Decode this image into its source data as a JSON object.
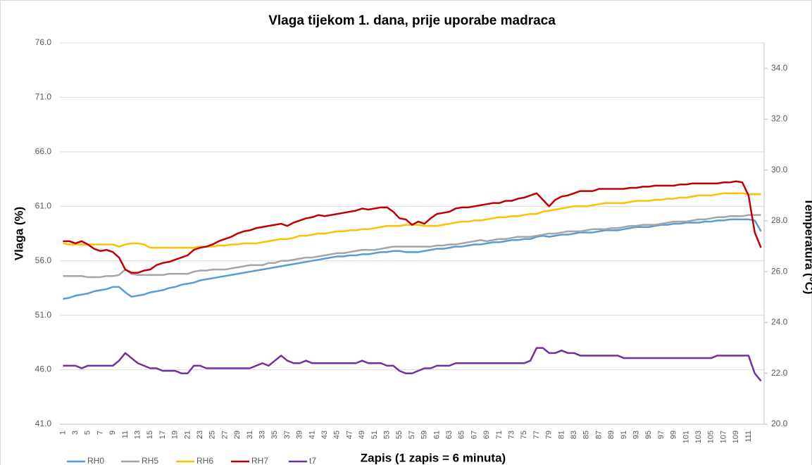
{
  "chart_data": {
    "type": "line",
    "title": "Vlaga tijekom 1. dana, prije uporabe madraca",
    "xlabel": "Zapis (1 zapis = 6 minuta)",
    "ylabel": "Vlaga (%)",
    "y2label": "Temperatura (°C)",
    "categories": [
      1,
      null,
      3,
      null,
      5,
      null,
      7,
      null,
      9,
      null,
      11,
      null,
      13,
      null,
      15,
      null,
      17,
      null,
      19,
      null,
      21,
      null,
      23,
      null,
      25,
      null,
      27,
      null,
      29,
      null,
      31,
      null,
      33,
      null,
      35,
      null,
      37,
      null,
      39,
      null,
      41,
      null,
      43,
      null,
      45,
      null,
      47,
      null,
      49,
      null,
      51,
      null,
      53,
      null,
      55,
      null,
      57,
      null,
      59,
      null,
      61,
      null,
      63,
      null,
      65,
      null,
      67,
      null,
      69,
      null,
      71,
      null,
      73,
      null,
      75,
      null,
      77,
      null,
      79,
      null,
      81,
      null,
      83,
      null,
      85,
      null,
      87,
      null,
      89,
      null,
      91,
      null,
      93,
      null,
      95,
      null,
      97,
      null,
      99,
      null,
      101,
      null,
      103,
      null,
      105,
      null,
      107,
      null,
      109,
      null,
      111,
      null,
      null
    ],
    "series": [
      {
        "name": "RH0",
        "color": "#5b9bd5",
        "values": [
          52.5,
          52.6,
          52.8,
          52.9,
          53.0,
          53.2,
          53.3,
          53.4,
          53.6,
          53.6,
          53.1,
          52.7,
          52.8,
          52.9,
          53.1,
          53.2,
          53.3,
          53.5,
          53.6,
          53.8,
          53.9,
          54.0,
          54.2,
          54.3,
          54.4,
          54.5,
          54.6,
          54.7,
          54.8,
          54.9,
          55.0,
          55.1,
          55.2,
          55.3,
          55.4,
          55.5,
          55.6,
          55.7,
          55.8,
          55.9,
          56.0,
          56.1,
          56.2,
          56.3,
          56.4,
          56.4,
          56.5,
          56.5,
          56.6,
          56.6,
          56.7,
          56.8,
          56.8,
          56.9,
          56.9,
          56.8,
          56.8,
          56.8,
          56.9,
          57.0,
          57.1,
          57.1,
          57.2,
          57.3,
          57.3,
          57.4,
          57.5,
          57.5,
          57.6,
          57.7,
          57.7,
          57.8,
          57.9,
          57.9,
          58.0,
          58.0,
          58.2,
          58.3,
          58.2,
          58.3,
          58.4,
          58.4,
          58.5,
          58.6,
          58.6,
          58.6,
          58.7,
          58.8,
          58.8,
          58.8,
          58.9,
          59.0,
          59.1,
          59.1,
          59.1,
          59.2,
          59.3,
          59.3,
          59.4,
          59.4,
          59.5,
          59.5,
          59.5,
          59.6,
          59.6,
          59.7,
          59.7,
          59.8,
          59.8,
          59.8,
          59.8,
          59.7,
          58.7
        ]
      },
      {
        "name": "RH5",
        "color": "#a5a5a5",
        "values": [
          54.6,
          54.6,
          54.6,
          54.6,
          54.5,
          54.5,
          54.5,
          54.6,
          54.6,
          54.7,
          55.2,
          54.8,
          54.7,
          54.7,
          54.7,
          54.7,
          54.7,
          54.8,
          54.8,
          54.8,
          54.8,
          55.0,
          55.1,
          55.1,
          55.2,
          55.2,
          55.2,
          55.3,
          55.4,
          55.5,
          55.6,
          55.6,
          55.6,
          55.8,
          55.8,
          56.0,
          56.0,
          56.1,
          56.2,
          56.3,
          56.3,
          56.4,
          56.5,
          56.6,
          56.7,
          56.7,
          56.8,
          56.9,
          57.0,
          57.0,
          57.0,
          57.1,
          57.2,
          57.3,
          57.3,
          57.3,
          57.3,
          57.3,
          57.3,
          57.3,
          57.4,
          57.4,
          57.5,
          57.5,
          57.6,
          57.7,
          57.8,
          57.9,
          57.8,
          57.9,
          58.0,
          58.0,
          58.1,
          58.2,
          58.2,
          58.2,
          58.3,
          58.4,
          58.5,
          58.5,
          58.6,
          58.7,
          58.7,
          58.7,
          58.8,
          58.9,
          58.9,
          58.9,
          59.0,
          59.0,
          59.1,
          59.2,
          59.2,
          59.3,
          59.3,
          59.3,
          59.4,
          59.5,
          59.6,
          59.6,
          59.6,
          59.7,
          59.8,
          59.8,
          59.9,
          60.0,
          60.0,
          60.1,
          60.1,
          60.1,
          60.2,
          60.2,
          60.2
        ]
      },
      {
        "name": "RH6",
        "color": "#ffc000",
        "values": [
          57.6,
          57.5,
          57.5,
          57.5,
          57.5,
          57.5,
          57.5,
          57.5,
          57.5,
          57.3,
          57.5,
          57.6,
          57.6,
          57.5,
          57.2,
          57.2,
          57.2,
          57.2,
          57.2,
          57.2,
          57.2,
          57.2,
          57.3,
          57.3,
          57.3,
          57.4,
          57.4,
          57.5,
          57.5,
          57.6,
          57.6,
          57.6,
          57.7,
          57.8,
          57.9,
          58.0,
          58.0,
          58.1,
          58.3,
          58.3,
          58.4,
          58.5,
          58.5,
          58.6,
          58.7,
          58.7,
          58.8,
          58.8,
          58.9,
          58.9,
          59.0,
          59.1,
          59.2,
          59.2,
          59.2,
          59.3,
          59.3,
          59.3,
          59.2,
          59.2,
          59.2,
          59.3,
          59.4,
          59.5,
          59.6,
          59.6,
          59.7,
          59.7,
          59.8,
          59.9,
          60.0,
          60.0,
          60.1,
          60.1,
          60.2,
          60.3,
          60.3,
          60.5,
          60.6,
          60.7,
          60.8,
          60.9,
          61.0,
          61.0,
          61.0,
          61.1,
          61.2,
          61.3,
          61.3,
          61.3,
          61.3,
          61.4,
          61.5,
          61.5,
          61.5,
          61.6,
          61.6,
          61.7,
          61.7,
          61.8,
          61.8,
          61.9,
          62.0,
          62.0,
          62.0,
          62.1,
          62.2,
          62.2,
          62.2,
          62.2,
          62.1,
          62.1,
          62.1
        ]
      },
      {
        "name": "RH7",
        "color": "#c00000",
        "values": [
          57.8,
          57.8,
          57.6,
          57.8,
          57.5,
          57.1,
          56.9,
          57.0,
          56.8,
          56.3,
          55.2,
          54.9,
          54.9,
          55.1,
          55.2,
          55.6,
          55.8,
          55.9,
          56.1,
          56.3,
          56.5,
          57.0,
          57.2,
          57.3,
          57.5,
          57.8,
          58.0,
          58.2,
          58.5,
          58.7,
          58.8,
          59.0,
          59.1,
          59.2,
          59.3,
          59.4,
          59.2,
          59.5,
          59.7,
          59.9,
          60.0,
          60.2,
          60.1,
          60.2,
          60.3,
          60.4,
          60.5,
          60.6,
          60.8,
          60.7,
          60.8,
          60.9,
          60.9,
          60.5,
          59.9,
          59.8,
          59.3,
          59.6,
          59.4,
          59.9,
          60.3,
          60.4,
          60.5,
          60.8,
          60.9,
          60.9,
          61.0,
          61.1,
          61.2,
          61.3,
          61.3,
          61.5,
          61.5,
          61.7,
          61.8,
          62.0,
          62.2,
          61.6,
          61.0,
          61.6,
          61.9,
          62.0,
          62.2,
          62.4,
          62.4,
          62.4,
          62.6,
          62.6,
          62.6,
          62.6,
          62.6,
          62.7,
          62.7,
          62.8,
          62.8,
          62.9,
          62.9,
          62.9,
          62.9,
          63.0,
          63.0,
          63.1,
          63.1,
          63.1,
          63.1,
          63.1,
          63.2,
          63.2,
          63.3,
          63.2,
          62.0,
          58.6,
          57.2
        ]
      },
      {
        "name": "t7",
        "color": "#7030a0",
        "axis": "y2",
        "values": [
          22.3,
          22.3,
          22.3,
          22.2,
          22.3,
          22.3,
          22.3,
          22.3,
          22.3,
          22.5,
          22.8,
          22.6,
          22.4,
          22.3,
          22.2,
          22.2,
          22.1,
          22.1,
          22.1,
          22.0,
          22.0,
          22.3,
          22.3,
          22.2,
          22.2,
          22.2,
          22.2,
          22.2,
          22.2,
          22.2,
          22.2,
          22.3,
          22.4,
          22.3,
          22.5,
          22.7,
          22.5,
          22.4,
          22.4,
          22.5,
          22.4,
          22.4,
          22.4,
          22.4,
          22.4,
          22.4,
          22.4,
          22.4,
          22.5,
          22.4,
          22.4,
          22.4,
          22.3,
          22.3,
          22.1,
          22.0,
          22.0,
          22.1,
          22.2,
          22.2,
          22.3,
          22.3,
          22.3,
          22.4,
          22.4,
          22.4,
          22.4,
          22.4,
          22.4,
          22.4,
          22.4,
          22.4,
          22.4,
          22.4,
          22.4,
          22.5,
          23.0,
          23.0,
          22.8,
          22.8,
          22.9,
          22.8,
          22.8,
          22.7,
          22.7,
          22.7,
          22.7,
          22.7,
          22.7,
          22.7,
          22.6,
          22.6,
          22.6,
          22.6,
          22.6,
          22.6,
          22.6,
          22.6,
          22.6,
          22.6,
          22.6,
          22.6,
          22.6,
          22.6,
          22.6,
          22.7,
          22.7,
          22.7,
          22.7,
          22.7,
          22.7,
          22.0,
          21.7
        ]
      }
    ],
    "ylim": [
      41,
      76
    ],
    "yticks": [
      {
        "value": 41,
        "label": "41.0"
      },
      {
        "value": 46,
        "label": "46.0"
      },
      {
        "value": 51,
        "label": "51.0"
      },
      {
        "value": 56,
        "label": "56.0"
      },
      {
        "value": 61,
        "label": "61.0"
      },
      {
        "value": 66,
        "label": "66.0"
      },
      {
        "value": 71,
        "label": "71.0"
      },
      {
        "value": 76,
        "label": "76.0"
      }
    ],
    "y2lim": [
      20,
      35
    ],
    "y2ticks": [
      {
        "value": 20,
        "label": "20.0"
      },
      {
        "value": 22,
        "label": "22.0"
      },
      {
        "value": 24,
        "label": "24.0"
      },
      {
        "value": 26,
        "label": "26.0"
      },
      {
        "value": 28,
        "label": "28.0"
      },
      {
        "value": 30,
        "label": "30.0"
      },
      {
        "value": 32,
        "label": "32.0"
      },
      {
        "value": 34,
        "label": "34.0"
      }
    ],
    "grid": true
  }
}
